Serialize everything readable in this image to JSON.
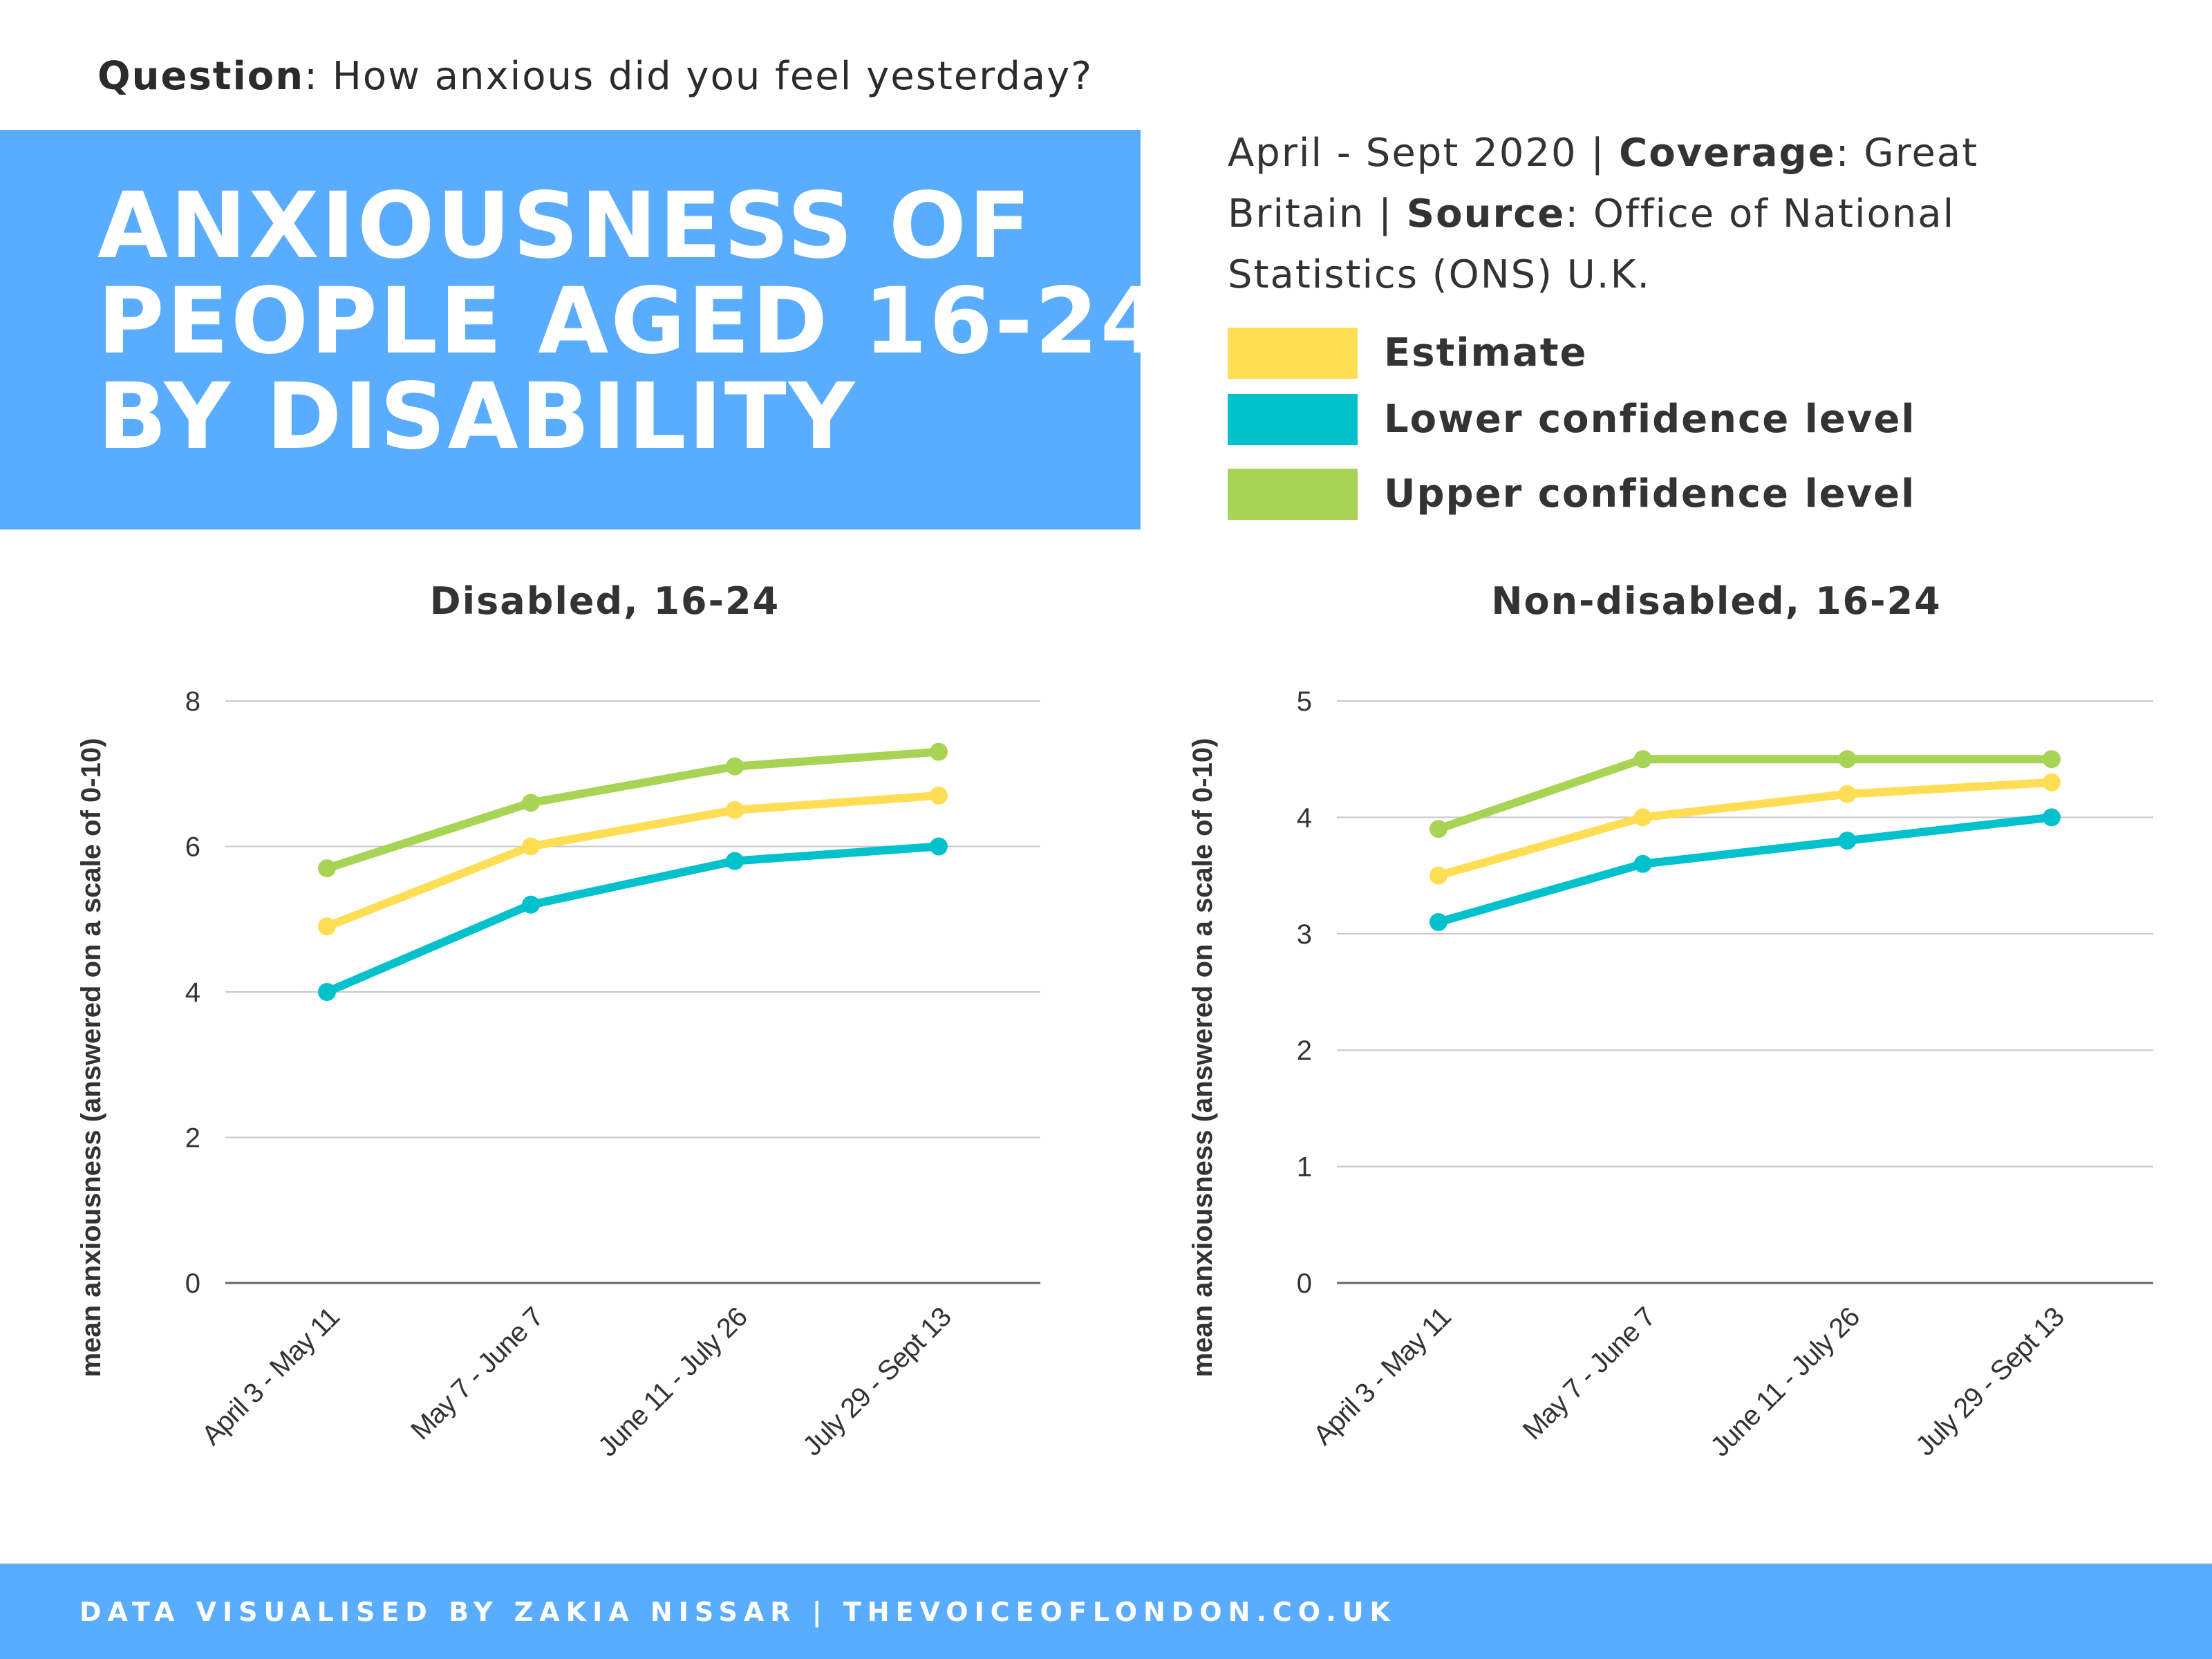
{
  "header": {
    "question_label": "Question",
    "question_text": ": How anxious did you feel yesterday?",
    "title_lines": [
      "ANXIOUSNESS OF",
      "PEOPLE AGED 16-24",
      "BY DISABILITY"
    ]
  },
  "meta": {
    "period": "April - Sept 2020 | ",
    "coverage_label": "Coverage",
    "coverage_value": ": Great Britain | ",
    "source_label": "Source",
    "source_value": ": Office of National Statistics (ONS) U.K."
  },
  "legend": [
    {
      "label": "Estimate",
      "color": "#ffdd55"
    },
    {
      "label": "Lower confidence level",
      "color": "#00c1cc"
    },
    {
      "label": "Upper confidence level",
      "color": "#a8d455"
    }
  ],
  "chart_data": [
    {
      "type": "line",
      "title": "Disabled, 16-24",
      "xlabel": "",
      "ylabel": "mean anxiousness (answered on a scale of 0-10)",
      "categories": [
        "April 3 - May 11",
        "May 7 - June 7",
        "June 11 - July 26",
        "July 29 - Sept 13"
      ],
      "ylim": [
        0,
        8
      ],
      "yticks": [
        0,
        2,
        4,
        6,
        8
      ],
      "grid": true,
      "series": [
        {
          "name": "Upper confidence level",
          "color": "#a8d455",
          "values": [
            5.7,
            6.6,
            7.1,
            7.3
          ]
        },
        {
          "name": "Estimate",
          "color": "#ffdd55",
          "values": [
            4.9,
            6.0,
            6.5,
            6.7
          ]
        },
        {
          "name": "Lower confidence level",
          "color": "#00c1cc",
          "values": [
            4.0,
            5.2,
            5.8,
            6.0
          ]
        }
      ]
    },
    {
      "type": "line",
      "title": "Non-disabled, 16-24",
      "xlabel": "",
      "ylabel": "mean anxiousness (answered on a scale of 0-10)",
      "categories": [
        "April 3 - May 11",
        "May 7 - June 7",
        "June 11 - July 26",
        "July 29 - Sept 13"
      ],
      "ylim": [
        0,
        5
      ],
      "yticks": [
        0,
        1,
        2,
        3,
        4,
        5
      ],
      "grid": true,
      "series": [
        {
          "name": "Upper confidence level",
          "color": "#a8d455",
          "values": [
            3.9,
            4.5,
            4.5,
            4.5
          ]
        },
        {
          "name": "Estimate",
          "color": "#ffdd55",
          "values": [
            3.5,
            4.0,
            4.2,
            4.3
          ]
        },
        {
          "name": "Lower confidence level",
          "color": "#00c1cc",
          "values": [
            3.1,
            3.6,
            3.8,
            4.0
          ]
        }
      ]
    }
  ],
  "footer": {
    "credit": "DATA VISUALISED BY ZAKIA NISSAR | THEVOICEOFLONDON.CO.UK"
  }
}
